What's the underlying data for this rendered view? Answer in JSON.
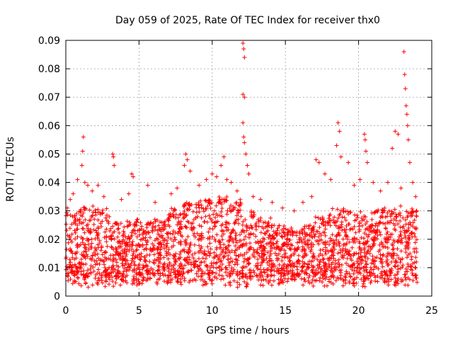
{
  "chart_data": {
    "type": "scatter",
    "title": "Day 059 of 2025, Rate Of TEC Index for receiver thx0",
    "xlabel": "GPS time / hours",
    "ylabel": "ROTI / TECUs",
    "xlim": [
      0,
      25
    ],
    "ylim": [
      0,
      0.09
    ],
    "x_ticks": [
      "0",
      "5",
      "10",
      "15",
      "20",
      "25"
    ],
    "y_ticks": [
      "0",
      "0.01",
      "0.02",
      "0.03",
      "0.04",
      "0.05",
      "0.06",
      "0.07",
      "0.08",
      "0.09"
    ],
    "grid": true,
    "marker": "+",
    "color": "#ff0000",
    "series": [
      {
        "name": "ROTI",
        "points": [
          [
            0.1,
            0.031
          ],
          [
            0.3,
            0.034
          ],
          [
            0.5,
            0.036
          ],
          [
            0.8,
            0.041
          ],
          [
            1.1,
            0.046
          ],
          [
            1.15,
            0.051
          ],
          [
            1.2,
            0.056
          ],
          [
            1.3,
            0.04
          ],
          [
            1.5,
            0.039
          ],
          [
            1.8,
            0.037
          ],
          [
            2.2,
            0.039
          ],
          [
            2.6,
            0.035
          ],
          [
            3.2,
            0.05
          ],
          [
            3.25,
            0.049
          ],
          [
            3.3,
            0.046
          ],
          [
            3.8,
            0.034
          ],
          [
            4.3,
            0.036
          ],
          [
            4.5,
            0.043
          ],
          [
            4.6,
            0.042
          ],
          [
            5.6,
            0.039
          ],
          [
            6.1,
            0.033
          ],
          [
            7.2,
            0.036
          ],
          [
            7.6,
            0.038
          ],
          [
            8.1,
            0.046
          ],
          [
            8.2,
            0.05
          ],
          [
            8.3,
            0.048
          ],
          [
            8.5,
            0.044
          ],
          [
            9.1,
            0.039
          ],
          [
            9.6,
            0.041
          ],
          [
            10.0,
            0.043
          ],
          [
            10.3,
            0.042
          ],
          [
            10.6,
            0.046
          ],
          [
            10.8,
            0.049
          ],
          [
            11.0,
            0.041
          ],
          [
            11.3,
            0.04
          ],
          [
            11.7,
            0.037
          ],
          [
            12.1,
            0.089
          ],
          [
            12.15,
            0.087
          ],
          [
            12.2,
            0.084
          ],
          [
            12.1,
            0.071
          ],
          [
            12.2,
            0.07
          ],
          [
            12.1,
            0.061
          ],
          [
            12.15,
            0.056
          ],
          [
            12.2,
            0.054
          ],
          [
            12.3,
            0.05
          ],
          [
            12.4,
            0.046
          ],
          [
            12.5,
            0.043
          ],
          [
            12.8,
            0.035
          ],
          [
            13.3,
            0.034
          ],
          [
            14.1,
            0.033
          ],
          [
            14.8,
            0.031
          ],
          [
            15.6,
            0.03
          ],
          [
            16.2,
            0.033
          ],
          [
            16.8,
            0.035
          ],
          [
            17.1,
            0.048
          ],
          [
            17.3,
            0.047
          ],
          [
            17.7,
            0.043
          ],
          [
            18.1,
            0.041
          ],
          [
            18.5,
            0.053
          ],
          [
            18.6,
            0.061
          ],
          [
            18.7,
            0.058
          ],
          [
            18.8,
            0.049
          ],
          [
            19.3,
            0.047
          ],
          [
            19.7,
            0.039
          ],
          [
            20.1,
            0.041
          ],
          [
            20.4,
            0.057
          ],
          [
            20.45,
            0.055
          ],
          [
            20.5,
            0.051
          ],
          [
            20.6,
            0.047
          ],
          [
            21.0,
            0.04
          ],
          [
            21.5,
            0.037
          ],
          [
            22.0,
            0.04
          ],
          [
            22.3,
            0.052
          ],
          [
            22.5,
            0.058
          ],
          [
            22.7,
            0.057
          ],
          [
            22.9,
            0.038
          ],
          [
            23.1,
            0.086
          ],
          [
            23.15,
            0.078
          ],
          [
            23.2,
            0.073
          ],
          [
            23.25,
            0.067
          ],
          [
            23.3,
            0.064
          ],
          [
            23.35,
            0.06
          ],
          [
            23.4,
            0.055
          ],
          [
            23.5,
            0.047
          ],
          [
            23.7,
            0.04
          ],
          [
            23.9,
            0.035
          ],
          [
            23.95,
            0.03
          ]
        ],
        "note": "Dense cloud of points between roughly 0.003 and 0.035 TECU spanning 0 to 24 h"
      }
    ]
  }
}
